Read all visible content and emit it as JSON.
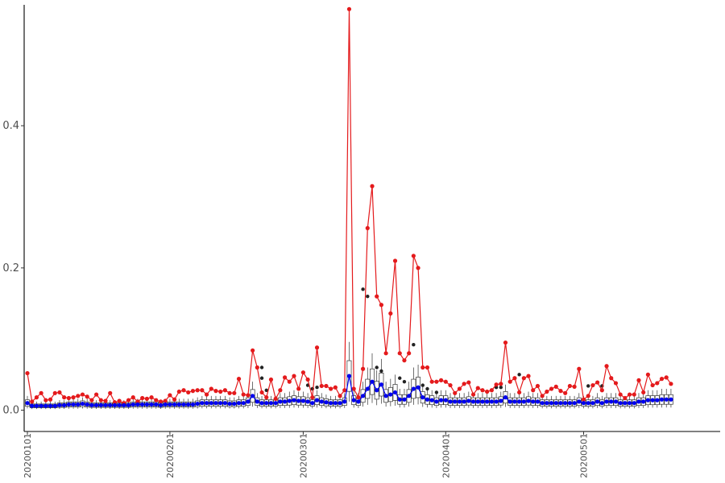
{
  "chart_data": {
    "type": "line",
    "title": "",
    "xlabel": "",
    "ylabel": "",
    "x_range": [
      "20200101",
      "20200530"
    ],
    "ylim": [
      -0.03,
      0.57
    ],
    "y_ticks": [
      0.0,
      0.2,
      0.4
    ],
    "y_tick_labels": [
      "0.0",
      "0.2",
      "0.4"
    ],
    "x_ticks": [
      "20200101",
      "20200201",
      "20200301",
      "20200401",
      "20200501"
    ],
    "grid": false,
    "legend": "none",
    "series": [
      {
        "color": "#e41a1c",
        "values": [
          0.052,
          0.012,
          0.018,
          0.024,
          0.014,
          0.015,
          0.024,
          0.025,
          0.018,
          0.017,
          0.018,
          0.02,
          0.022,
          0.019,
          0.014,
          0.022,
          0.014,
          0.013,
          0.024,
          0.011,
          0.013,
          0.01,
          0.014,
          0.018,
          0.012,
          0.017,
          0.016,
          0.018,
          0.014,
          0.012,
          0.013,
          0.021,
          0.015,
          0.026,
          0.028,
          0.025,
          0.027,
          0.028,
          0.028,
          0.022,
          0.03,
          0.027,
          0.026,
          0.028,
          0.024,
          0.024,
          0.044,
          0.022,
          0.021,
          0.084,
          0.06,
          0.025,
          0.018,
          0.043,
          0.016,
          0.028,
          0.046,
          0.04,
          0.048,
          0.03,
          0.053,
          0.043,
          0.018,
          0.088,
          0.034,
          0.034,
          0.03,
          0.032,
          0.02,
          0.028,
          0.564,
          0.03,
          0.018,
          0.058,
          0.256,
          0.315,
          0.16,
          0.148,
          0.08,
          0.136,
          0.21,
          0.08,
          0.07,
          0.08,
          0.217,
          0.2,
          0.06,
          0.06,
          0.04,
          0.04,
          0.042,
          0.04,
          0.035,
          0.024,
          0.03,
          0.037,
          0.039,
          0.022,
          0.031,
          0.028,
          0.026,
          0.028,
          0.036,
          0.037,
          0.095,
          0.04,
          0.045,
          0.025,
          0.045,
          0.048,
          0.028,
          0.034,
          0.02,
          0.026,
          0.03,
          0.033,
          0.027,
          0.024,
          0.034,
          0.033,
          0.058,
          0.015,
          0.02,
          0.035,
          0.039,
          0.028,
          0.062,
          0.045,
          0.038,
          0.022,
          0.017,
          0.022,
          0.022,
          0.042,
          0.025,
          0.05,
          0.035,
          0.038,
          0.044,
          0.046,
          0.037
        ]
      },
      {
        "color": "#0000ee",
        "values": [
          0.01,
          0.006,
          0.006,
          0.006,
          0.006,
          0.006,
          0.006,
          0.007,
          0.007,
          0.008,
          0.008,
          0.008,
          0.009,
          0.008,
          0.007,
          0.007,
          0.007,
          0.007,
          0.007,
          0.007,
          0.007,
          0.007,
          0.007,
          0.008,
          0.008,
          0.008,
          0.008,
          0.008,
          0.008,
          0.007,
          0.008,
          0.008,
          0.008,
          0.008,
          0.008,
          0.008,
          0.008,
          0.009,
          0.01,
          0.01,
          0.01,
          0.01,
          0.01,
          0.01,
          0.009,
          0.009,
          0.01,
          0.01,
          0.012,
          0.02,
          0.012,
          0.01,
          0.01,
          0.01,
          0.01,
          0.012,
          0.012,
          0.013,
          0.014,
          0.013,
          0.013,
          0.012,
          0.01,
          0.014,
          0.012,
          0.011,
          0.01,
          0.01,
          0.01,
          0.012,
          0.048,
          0.014,
          0.012,
          0.02,
          0.03,
          0.04,
          0.028,
          0.036,
          0.02,
          0.022,
          0.025,
          0.015,
          0.015,
          0.02,
          0.03,
          0.032,
          0.018,
          0.015,
          0.014,
          0.012,
          0.014,
          0.014,
          0.012,
          0.012,
          0.012,
          0.012,
          0.013,
          0.012,
          0.012,
          0.012,
          0.012,
          0.012,
          0.012,
          0.013,
          0.018,
          0.012,
          0.012,
          0.012,
          0.012,
          0.013,
          0.012,
          0.012,
          0.01,
          0.01,
          0.01,
          0.01,
          0.01,
          0.01,
          0.01,
          0.01,
          0.012,
          0.01,
          0.01,
          0.01,
          0.012,
          0.01,
          0.012,
          0.012,
          0.012,
          0.01,
          0.01,
          0.01,
          0.01,
          0.012,
          0.012,
          0.014,
          0.014,
          0.014,
          0.015,
          0.015,
          0.015
        ]
      }
    ],
    "outlier_points": [
      {
        "x": "20200302",
        "y": 0.035
      },
      {
        "x": "20200221",
        "y": 0.06
      },
      {
        "x": "20200221",
        "y": 0.045
      },
      {
        "x": "20200222",
        "y": 0.028
      },
      {
        "x": "20200303",
        "y": 0.03
      },
      {
        "x": "20200304",
        "y": 0.032
      },
      {
        "x": "20200314",
        "y": 0.17
      },
      {
        "x": "20200315",
        "y": 0.16
      },
      {
        "x": "20200317",
        "y": 0.06
      },
      {
        "x": "20200318",
        "y": 0.055
      },
      {
        "x": "20200322",
        "y": 0.045
      },
      {
        "x": "20200323",
        "y": 0.04
      },
      {
        "x": "20200325",
        "y": 0.092
      },
      {
        "x": "20200327",
        "y": 0.035
      },
      {
        "x": "20200328",
        "y": 0.03
      },
      {
        "x": "20200330",
        "y": 0.025
      },
      {
        "x": "20200412",
        "y": 0.032
      },
      {
        "x": "20200413",
        "y": 0.032
      },
      {
        "x": "20200417",
        "y": 0.05
      },
      {
        "x": "20200502",
        "y": 0.034
      },
      {
        "x": "20200505",
        "y": 0.034
      }
    ]
  }
}
